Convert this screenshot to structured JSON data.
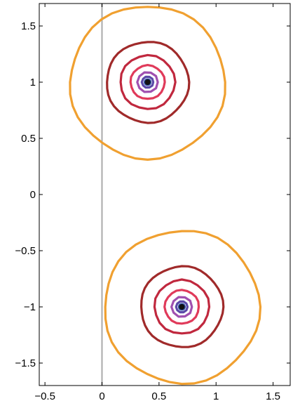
{
  "chart_data": {
    "type": "contour",
    "title": "",
    "xlabel": "",
    "ylabel": "",
    "xlim": [
      -0.55,
      1.65
    ],
    "ylim": [
      -1.7,
      1.7
    ],
    "grid": false,
    "x_ticks": [
      {
        "value": -0.5,
        "label": "−0.5"
      },
      {
        "value": 0,
        "label": "0"
      },
      {
        "value": 0.5,
        "label": "0.5"
      },
      {
        "value": 1,
        "label": "1"
      },
      {
        "value": 1.5,
        "label": "1.5"
      }
    ],
    "y_ticks": [
      {
        "value": 1.5,
        "label": "1.5"
      },
      {
        "value": 1,
        "label": "1"
      },
      {
        "value": 0.5,
        "label": "0.5"
      },
      {
        "value": 0,
        "label": "0"
      },
      {
        "value": -0.5,
        "label": "−0.5"
      },
      {
        "value": -1,
        "label": "−1"
      },
      {
        "value": -1.5,
        "label": "−1.5"
      }
    ],
    "reference_line": {
      "x": 0,
      "color": "#aaaaaa"
    },
    "centers": [
      {
        "x": 0.4,
        "y": 1.0
      },
      {
        "x": 0.7,
        "y": -1.0
      }
    ],
    "contour_levels": [
      {
        "radius": 0.68,
        "color": "#f0a030"
      },
      {
        "radius": 0.36,
        "color": "#a02a2a"
      },
      {
        "radius": 0.24,
        "color": "#c0283e"
      },
      {
        "radius": 0.15,
        "color": "#e03a5a"
      },
      {
        "radius": 0.09,
        "color": "#a050b0"
      },
      {
        "radius": 0.05,
        "color": "#5a4aa8"
      },
      {
        "radius": 0.025,
        "color": "#3050a0"
      }
    ],
    "center_marker_color": "#111111"
  }
}
